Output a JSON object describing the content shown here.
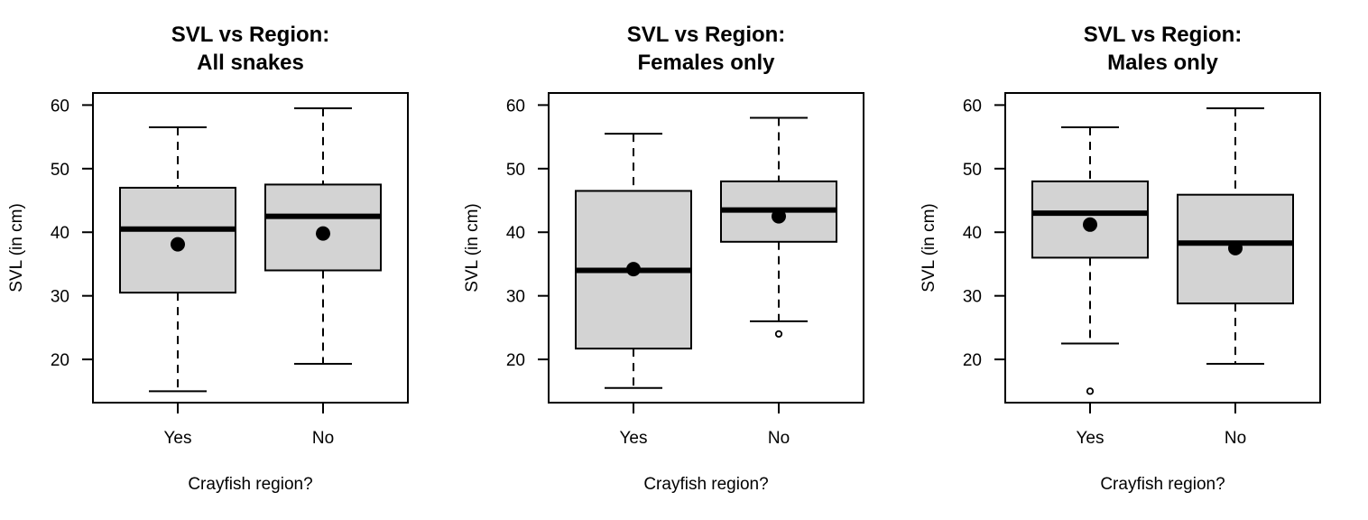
{
  "figure": {
    "background": "#ffffff",
    "box_fill": "#d3d3d3",
    "line_color": "#000000"
  },
  "chart_data": [
    {
      "type": "boxplot",
      "title": "SVL vs Region:\nAll snakes",
      "title_lines": [
        "SVL vs Region:",
        "All snakes"
      ],
      "xlabel": "Crayfish region?",
      "ylabel": "SVL (in cm)",
      "categories": [
        "Yes",
        "No"
      ],
      "yticks": [
        20,
        30,
        40,
        50,
        60
      ],
      "ylim": [
        13.2,
        61.9
      ],
      "grid": false,
      "series": [
        {
          "name": "Yes",
          "whisker_low": 15.0,
          "q1": 30.5,
          "median": 40.5,
          "q3": 47.0,
          "whisker_high": 56.5,
          "mean": 38.1,
          "outliers": []
        },
        {
          "name": "No",
          "whisker_low": 19.3,
          "q1": 34.0,
          "median": 42.5,
          "q3": 47.5,
          "whisker_high": 59.5,
          "mean": 39.8,
          "outliers": []
        }
      ]
    },
    {
      "type": "boxplot",
      "title": "SVL vs Region:\nFemales only",
      "title_lines": [
        "SVL vs Region:",
        "Females only"
      ],
      "xlabel": "Crayfish region?",
      "ylabel": "SVL (in cm)",
      "categories": [
        "Yes",
        "No"
      ],
      "yticks": [
        20,
        30,
        40,
        50,
        60
      ],
      "ylim": [
        13.2,
        61.9
      ],
      "grid": false,
      "series": [
        {
          "name": "Yes",
          "whisker_low": 15.5,
          "q1": 21.7,
          "median": 34.0,
          "q3": 46.5,
          "whisker_high": 55.5,
          "mean": 34.2,
          "outliers": []
        },
        {
          "name": "No",
          "whisker_low": 26.0,
          "q1": 38.5,
          "median": 43.5,
          "q3": 48.0,
          "whisker_high": 58.0,
          "mean": 42.5,
          "outliers": [
            24.0
          ]
        }
      ]
    },
    {
      "type": "boxplot",
      "title": "SVL vs Region:\nMales only",
      "title_lines": [
        "SVL vs Region:",
        "Males only"
      ],
      "xlabel": "Crayfish region?",
      "ylabel": "SVL (in cm)",
      "categories": [
        "Yes",
        "No"
      ],
      "yticks": [
        20,
        30,
        40,
        50,
        60
      ],
      "ylim": [
        13.2,
        61.9
      ],
      "grid": false,
      "series": [
        {
          "name": "Yes",
          "whisker_low": 22.5,
          "q1": 36.0,
          "median": 43.0,
          "q3": 48.0,
          "whisker_high": 56.5,
          "mean": 41.2,
          "outliers": [
            15.0
          ]
        },
        {
          "name": "No",
          "whisker_low": 19.3,
          "q1": 28.8,
          "median": 38.3,
          "q3": 45.9,
          "whisker_high": 59.5,
          "mean": 37.5,
          "outliers": []
        }
      ]
    }
  ]
}
